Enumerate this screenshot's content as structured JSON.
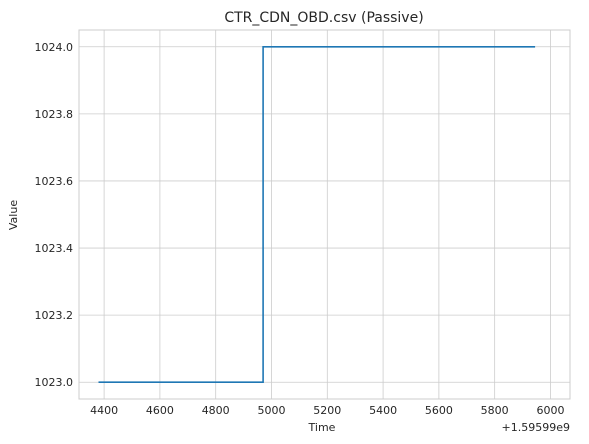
{
  "chart_data": {
    "type": "line",
    "title": "CTR_CDN_OBD.csv (Passive)",
    "xlabel": "Time",
    "ylabel": "Value",
    "offset_label": "+1.59599e9",
    "xlim": [
      4310,
      6070
    ],
    "ylim": [
      1022.95,
      1024.05
    ],
    "x_ticks": [
      4400,
      4600,
      4800,
      5000,
      5200,
      5400,
      5600,
      5800,
      6000
    ],
    "x_tick_labels": [
      "4400",
      "4600",
      "4800",
      "5000",
      "5200",
      "5400",
      "5600",
      "5800",
      "6000"
    ],
    "y_ticks": [
      1023.0,
      1023.2,
      1023.4,
      1023.6,
      1023.8,
      1024.0
    ],
    "y_tick_labels": [
      "1023.0",
      "1023.2",
      "1023.4",
      "1023.6",
      "1023.8",
      "1024.0"
    ],
    "grid": true,
    "series": [
      {
        "color": "#1f77b4",
        "x": [
          4380,
          4970,
          4970,
          5945
        ],
        "y": [
          1023.0,
          1023.0,
          1024.0,
          1024.0
        ]
      }
    ]
  }
}
